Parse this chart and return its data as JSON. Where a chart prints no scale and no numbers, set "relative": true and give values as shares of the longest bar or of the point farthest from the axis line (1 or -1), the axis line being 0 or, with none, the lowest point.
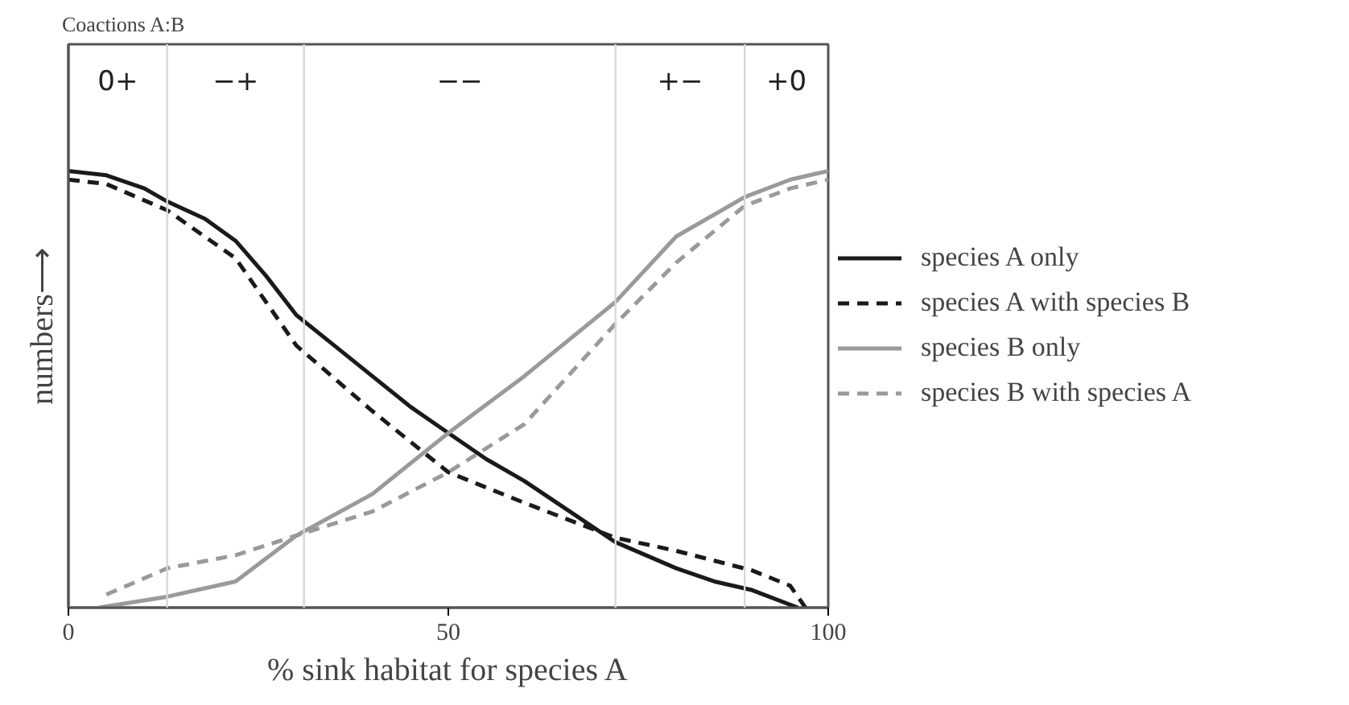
{
  "chart_data": {
    "type": "line",
    "title": "Coactions A:B",
    "xlabel": "% sink habitat for species A",
    "ylabel": "numbers⟶",
    "relative": true,
    "xlim": [
      0,
      100
    ],
    "xticks": [
      0,
      50,
      100
    ],
    "grid": false,
    "legend": "right",
    "marker": "none",
    "series": [
      {
        "name": "species A only",
        "color": "#1a1a1a",
        "line_style": "solid",
        "x": [
          0,
          5,
          10,
          13,
          18,
          22,
          26,
          30,
          35,
          40,
          45,
          50,
          55,
          60,
          66,
          72,
          80,
          85,
          90,
          96
        ],
        "values": [
          1.0,
          0.99,
          0.96,
          0.93,
          0.89,
          0.84,
          0.76,
          0.67,
          0.6,
          0.53,
          0.46,
          0.4,
          0.34,
          0.29,
          0.22,
          0.15,
          0.09,
          0.06,
          0.04,
          0.0
        ]
      },
      {
        "name": "species A with species B",
        "color": "#1a1a1a",
        "line_style": "dashed",
        "x": [
          0,
          5,
          13,
          22,
          30,
          40,
          50,
          60,
          72,
          80,
          90,
          95,
          97
        ],
        "values": [
          0.98,
          0.97,
          0.91,
          0.8,
          0.6,
          0.45,
          0.31,
          0.24,
          0.16,
          0.13,
          0.085,
          0.05,
          0.0
        ]
      },
      {
        "name": "species B only",
        "color": "#9a9a9a",
        "line_style": "solid",
        "x": [
          4,
          13,
          22,
          30,
          40,
          50,
          60,
          72,
          80,
          89,
          95,
          100
        ],
        "values": [
          0.0,
          0.025,
          0.06,
          0.165,
          0.26,
          0.4,
          0.53,
          0.7,
          0.85,
          0.94,
          0.98,
          1.0
        ]
      },
      {
        "name": "species B with species A",
        "color": "#9a9a9a",
        "line_style": "dashed",
        "x": [
          5,
          13,
          22,
          30,
          40,
          50,
          60,
          72,
          80,
          89,
          95,
          100
        ],
        "values": [
          0.03,
          0.09,
          0.12,
          0.165,
          0.22,
          0.31,
          0.42,
          0.65,
          0.79,
          0.92,
          0.96,
          0.98
        ]
      }
    ],
    "ref_lines": [
      {
        "axis": "x",
        "value": 13,
        "color": "#d8d8d8"
      },
      {
        "axis": "x",
        "value": 31,
        "color": "#d8d8d8"
      },
      {
        "axis": "x",
        "value": 72,
        "color": "#d8d8d8"
      },
      {
        "axis": "x",
        "value": 89,
        "color": "#d8d8d8"
      }
    ],
    "annotations": [
      "0+",
      "−+",
      "−−",
      "+−",
      "+0"
    ]
  }
}
